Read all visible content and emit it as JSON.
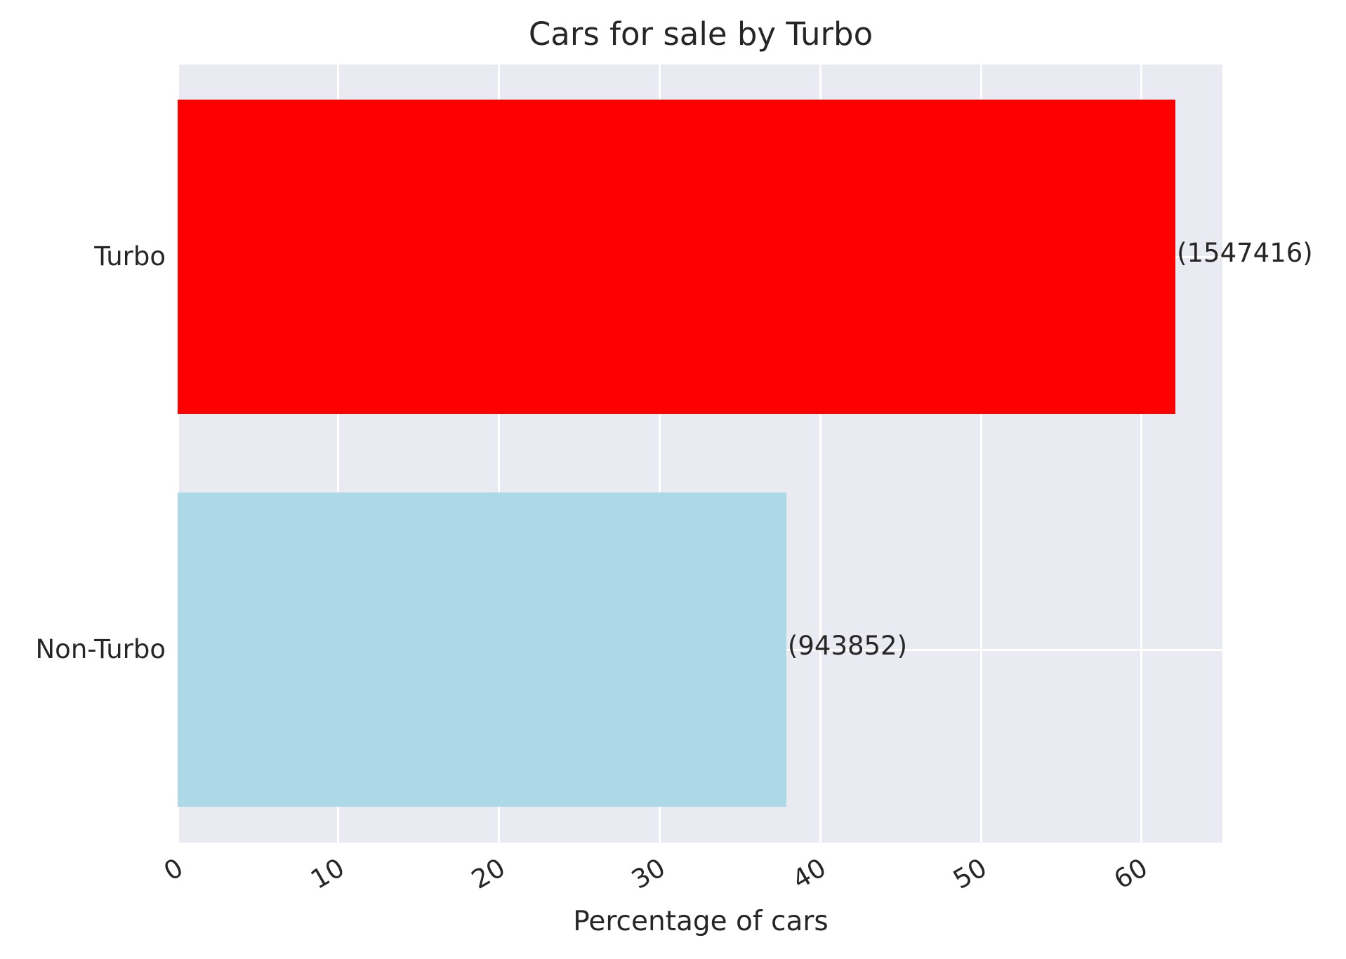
{
  "chart_data": {
    "type": "bar",
    "orientation": "horizontal",
    "title": "Cars for sale by Turbo",
    "xlabel": "Percentage of cars",
    "ylabel": "",
    "categories": [
      "Turbo",
      "Non-Turbo"
    ],
    "values": [
      62.11,
      37.89
    ],
    "counts": [
      1547416,
      943852
    ],
    "bar_labels": [
      "(1547416)",
      "(943852)"
    ],
    "colors": [
      "#FF0000",
      "#ADD8E6"
    ],
    "xlim": [
      0,
      65
    ],
    "xticks": [
      0,
      10,
      20,
      30,
      40,
      50,
      60
    ],
    "xtick_labels": [
      "0",
      "10",
      "20",
      "30",
      "40",
      "50",
      "60"
    ],
    "xtick_rotation": 30,
    "grid": true,
    "legend": null,
    "background": "#EAEAF2"
  }
}
